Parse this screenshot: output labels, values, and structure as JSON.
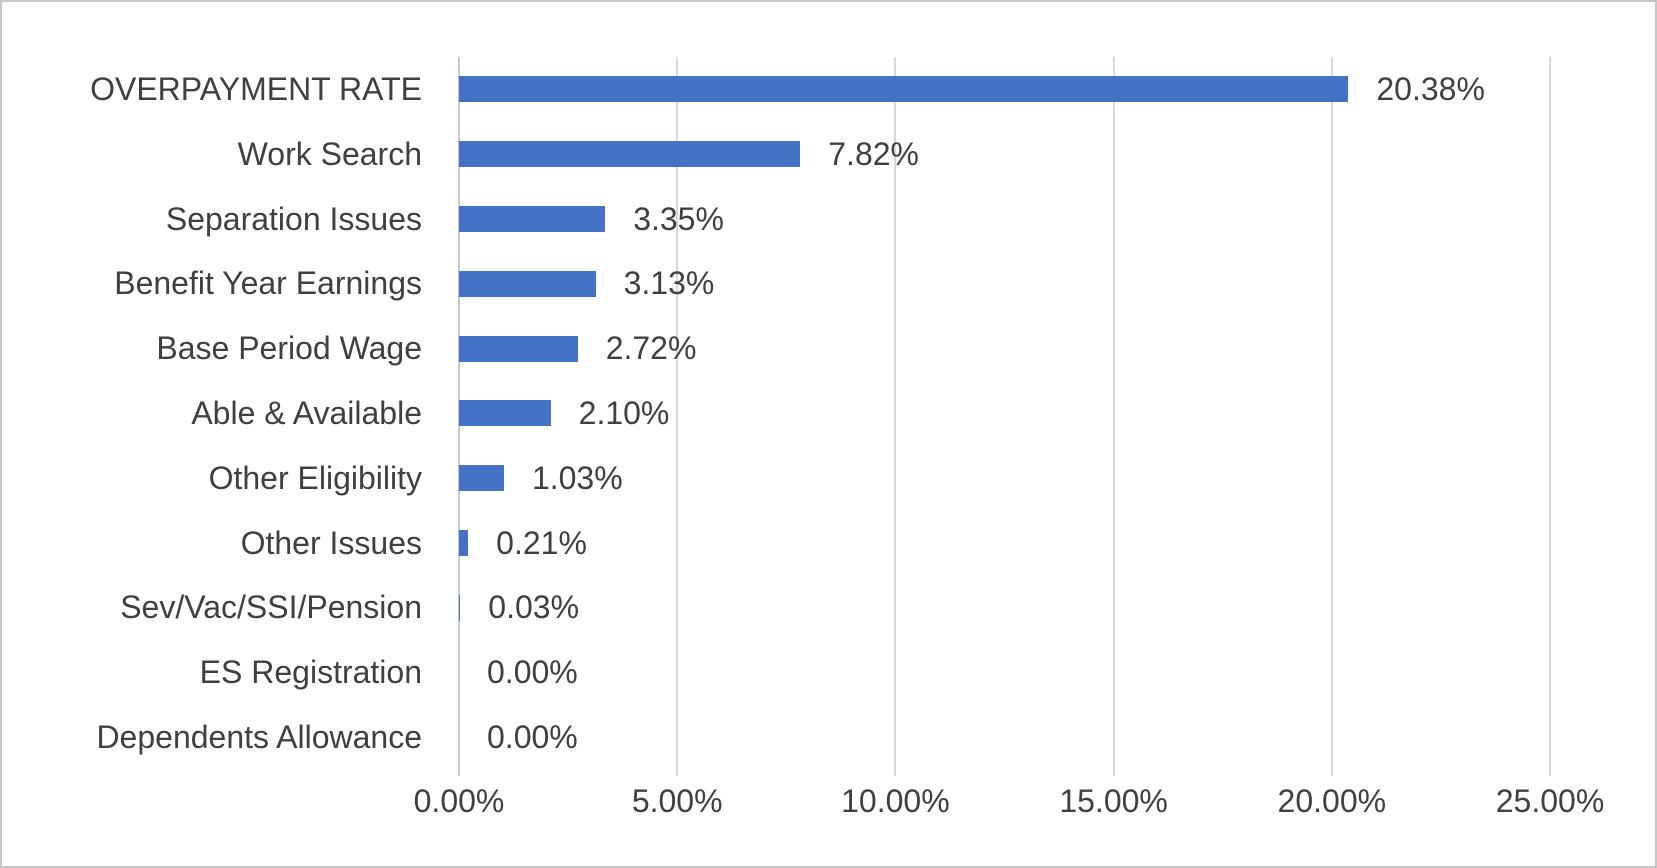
{
  "chart_data": {
    "type": "bar",
    "orientation": "horizontal",
    "title": "",
    "xlabel": "",
    "ylabel": "",
    "grid": "vertical",
    "legend": "none",
    "xlim": [
      0,
      25
    ],
    "categories": [
      "OVERPAYMENT RATE",
      "Work Search",
      "Separation Issues",
      "Benefit Year Earnings",
      "Base Period Wage",
      "Able & Available",
      "Other Eligibility",
      "Other Issues",
      "Sev/Vac/SSI/Pension",
      "ES Registration",
      "Dependents Allowance"
    ],
    "values": [
      20.38,
      7.82,
      3.35,
      3.13,
      2.72,
      2.1,
      1.03,
      0.21,
      0.03,
      0.0,
      0.0
    ],
    "value_labels": [
      "20.38%",
      "7.82%",
      "3.35%",
      "3.13%",
      "2.72%",
      "2.10%",
      "1.03%",
      "0.21%",
      "0.03%",
      "0.00%",
      "0.00%"
    ],
    "x_tick_values": [
      0,
      5,
      10,
      15,
      20,
      25
    ],
    "x_tick_labels": [
      "0.00%",
      "5.00%",
      "10.00%",
      "15.00%",
      "20.00%",
      "25.00%"
    ],
    "colors": {
      "bar": "#4472c4",
      "gridline": "#d9d9d9",
      "axis_line": "#c9c9c9",
      "text": "#404040",
      "background": "#ffffff",
      "frame_border": "#c6c6c6"
    }
  }
}
